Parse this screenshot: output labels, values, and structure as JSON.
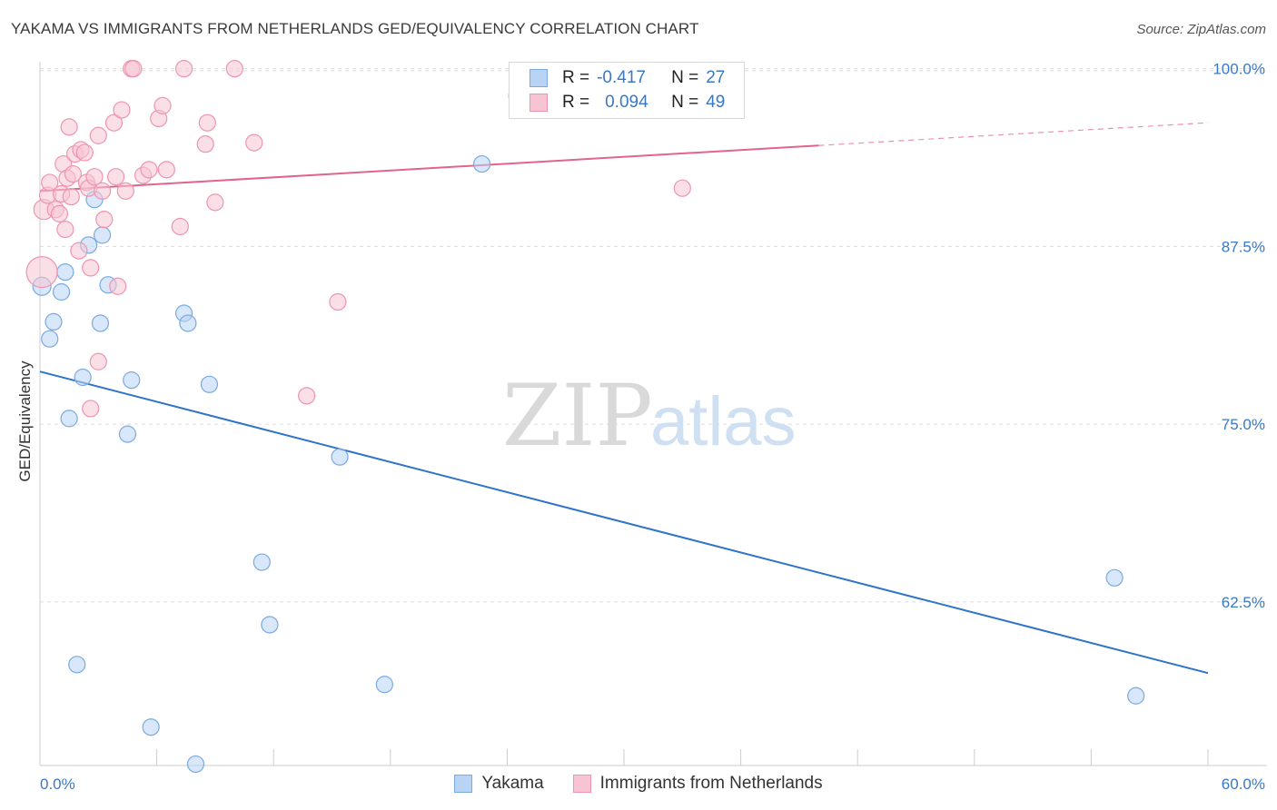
{
  "header": {
    "title": "YAKAMA VS IMMIGRANTS FROM NETHERLANDS GED/EQUIVALENCY CORRELATION CHART",
    "source": "Source: ZipAtlas.com"
  },
  "watermark": {
    "zip": "ZIP",
    "atlas": "atlas"
  },
  "legend": {
    "r_label": "R =",
    "n_label": "N =",
    "rows": [
      {
        "r": "-0.417",
        "n": "27"
      },
      {
        "r": "0.094",
        "n": "49"
      }
    ]
  },
  "bottom_legend": {
    "items": [
      "Yakama",
      "Immigrants from Netherlands"
    ]
  },
  "colors": {
    "yakama_fill": "#b8d3f4",
    "yakama_stroke": "#7aaae0",
    "yakama_line": "#2e74c9",
    "neth_fill": "#f8c4d4",
    "neth_stroke": "#ee94b0",
    "neth_line": "#e0648c",
    "tick_label": "#3a78c4",
    "grid": "#dddddd"
  },
  "chart_data": {
    "type": "scatter",
    "title": "YAKAMA VS IMMIGRANTS FROM NETHERLANDS GED/EQUIVALENCY CORRELATION CHART",
    "xlabel": "",
    "ylabel": "GED/Equivalency",
    "xlim": [
      0,
      60
    ],
    "ylim": [
      51,
      101
    ],
    "x_tick_labels": [
      "0.0%",
      "60.0%"
    ],
    "y_ticks": [
      62.5,
      75.0,
      87.5,
      100.0
    ],
    "y_tick_labels": [
      "62.5%",
      "75.0%",
      "87.5%",
      "100.0%"
    ],
    "grid": "horizontal dashed",
    "legend_position": "top-center",
    "series": [
      {
        "name": "Yakama",
        "r": -0.417,
        "n": 27,
        "trend": {
          "x": [
            0,
            60
          ],
          "y": [
            78.7,
            57.5
          ],
          "solid_to": 60
        },
        "points": [
          [
            0.1,
            84.7,
            10
          ],
          [
            1.1,
            84.3,
            9
          ],
          [
            1.3,
            85.7,
            9
          ],
          [
            0.7,
            82.2,
            9
          ],
          [
            0.5,
            81.0,
            9
          ],
          [
            2.5,
            87.6,
            9
          ],
          [
            3.2,
            88.3,
            9
          ],
          [
            2.8,
            90.8,
            9
          ],
          [
            3.5,
            84.8,
            9
          ],
          [
            3.1,
            82.1,
            9
          ],
          [
            2.2,
            78.3,
            9
          ],
          [
            4.7,
            78.1,
            9
          ],
          [
            1.5,
            75.4,
            9
          ],
          [
            4.5,
            74.3,
            9
          ],
          [
            7.4,
            82.8,
            9
          ],
          [
            7.6,
            82.1,
            9
          ],
          [
            8.7,
            77.8,
            9
          ],
          [
            15.4,
            72.7,
            9
          ],
          [
            22.7,
            93.3,
            9
          ],
          [
            11.4,
            65.3,
            9
          ],
          [
            11.8,
            60.9,
            9
          ],
          [
            1.9,
            58.1,
            9
          ],
          [
            17.7,
            56.7,
            9
          ],
          [
            5.7,
            53.7,
            9
          ],
          [
            8.0,
            51.1,
            9
          ],
          [
            55.2,
            64.2,
            9
          ],
          [
            56.3,
            55.9,
            9
          ]
        ]
      },
      {
        "name": "Immigrants from Netherlands",
        "r": 0.094,
        "n": 49,
        "trend": {
          "x": [
            0,
            60
          ],
          "y": [
            91.4,
            96.2
          ],
          "solid_to": 40
        },
        "points": [
          [
            0.1,
            85.7,
            17
          ],
          [
            0.2,
            90.1,
            11
          ],
          [
            0.4,
            91.1,
            9
          ],
          [
            0.5,
            92.0,
            9
          ],
          [
            0.8,
            90.1,
            9
          ],
          [
            1.0,
            89.8,
            9
          ],
          [
            1.1,
            91.2,
            9
          ],
          [
            1.2,
            93.3,
            9
          ],
          [
            1.3,
            88.7,
            9
          ],
          [
            1.4,
            92.3,
            9
          ],
          [
            1.5,
            95.9,
            9
          ],
          [
            1.6,
            91.0,
            9
          ],
          [
            1.7,
            92.6,
            9
          ],
          [
            1.8,
            94.0,
            9
          ],
          [
            2.0,
            87.2,
            9
          ],
          [
            2.1,
            94.3,
            9
          ],
          [
            2.3,
            94.1,
            9
          ],
          [
            2.4,
            92.0,
            9
          ],
          [
            2.5,
            91.6,
            9
          ],
          [
            2.6,
            86.0,
            9
          ],
          [
            2.8,
            92.4,
            9
          ],
          [
            3.0,
            95.3,
            9
          ],
          [
            3.2,
            91.4,
            9
          ],
          [
            3.3,
            89.4,
            9
          ],
          [
            3.8,
            96.2,
            9
          ],
          [
            3.9,
            92.4,
            9
          ],
          [
            4.0,
            84.7,
            9
          ],
          [
            4.2,
            97.1,
            9
          ],
          [
            4.4,
            91.4,
            9
          ],
          [
            4.7,
            100.0,
            9
          ],
          [
            4.8,
            100.0,
            9
          ],
          [
            5.3,
            92.5,
            9
          ],
          [
            5.6,
            92.9,
            9
          ],
          [
            6.1,
            96.5,
            9
          ],
          [
            6.3,
            97.4,
            9
          ],
          [
            6.5,
            92.9,
            9
          ],
          [
            7.2,
            88.9,
            9
          ],
          [
            7.4,
            100.0,
            9
          ],
          [
            8.5,
            94.7,
            9
          ],
          [
            8.6,
            96.2,
            9
          ],
          [
            9.0,
            90.6,
            9
          ],
          [
            10.0,
            100.0,
            9
          ],
          [
            11.0,
            94.8,
            9
          ],
          [
            13.7,
            77.0,
            9
          ],
          [
            15.3,
            83.6,
            9
          ],
          [
            3.0,
            79.4,
            9
          ],
          [
            2.6,
            76.1,
            9
          ],
          [
            24.5,
            98.1,
            9
          ],
          [
            33.0,
            91.6,
            9
          ]
        ]
      }
    ]
  }
}
